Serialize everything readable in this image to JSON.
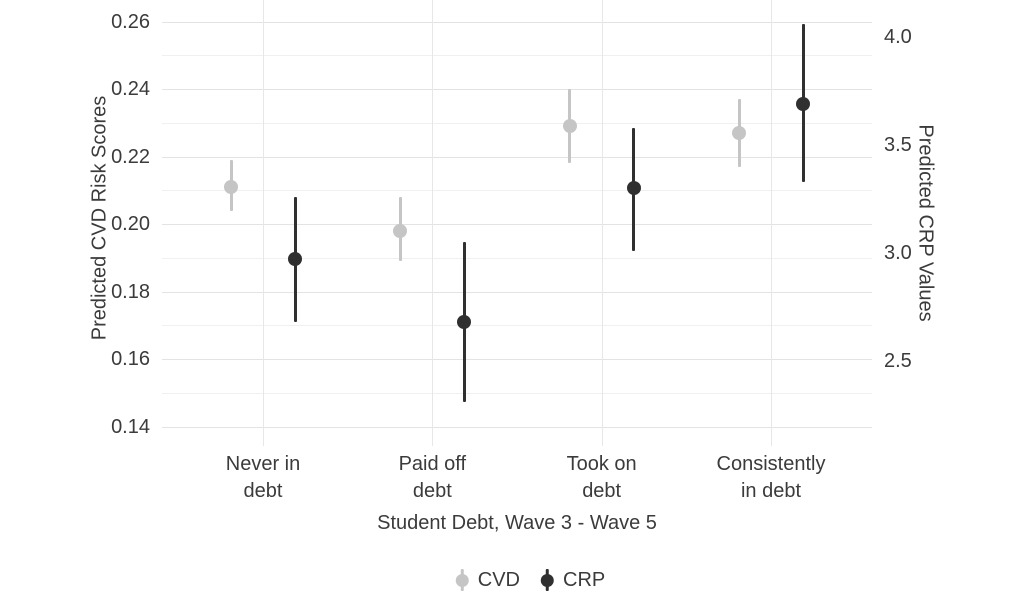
{
  "chart_data": {
    "type": "scatter",
    "subtype": "pointrange-dual-axis",
    "title": "",
    "xlabel": "Student Debt, Wave 3 - Wave 5",
    "categories": [
      {
        "lines": [
          "Never in",
          "debt"
        ]
      },
      {
        "lines": [
          "Paid off",
          "debt"
        ]
      },
      {
        "lines": [
          "Took on",
          "debt"
        ]
      },
      {
        "lines": [
          "Consistently",
          "in debt"
        ]
      }
    ],
    "left_axis": {
      "label": "Predicted CVD Risk Scores",
      "ticks": [
        "0.26",
        "0.24",
        "0.22",
        "0.20",
        "0.18",
        "0.16",
        "0.14"
      ],
      "range": [
        0.13,
        0.267
      ]
    },
    "right_axis": {
      "label": "Predicted CRP Values",
      "ticks": [
        "4.0",
        "3.5",
        "3.0",
        "2.5"
      ],
      "range": [
        2.29,
        4.09
      ]
    },
    "series": [
      {
        "name": "CVD",
        "axis": "left",
        "color": "#c5c5c5",
        "values": [
          0.211,
          0.198,
          0.229,
          0.227
        ],
        "ci_low": [
          0.204,
          0.189,
          0.218,
          0.217
        ],
        "ci_high": [
          0.219,
          0.208,
          0.24,
          0.237
        ]
      },
      {
        "name": "CRP",
        "axis": "right",
        "color": "#303030",
        "values": [
          2.97,
          2.68,
          3.3,
          3.69
        ],
        "ci_low": [
          2.68,
          2.31,
          3.01,
          3.33
        ],
        "ci_high": [
          3.26,
          3.05,
          3.58,
          4.06
        ]
      }
    ],
    "legend": {
      "position": "bottom",
      "entries": [
        {
          "label": "CVD",
          "color": "#c5c5c5"
        },
        {
          "label": "CRP",
          "color": "#303030"
        }
      ]
    },
    "grid": {
      "horizontal_major": true,
      "horizontal_minor": true,
      "vertical_major": true
    }
  },
  "colors": {
    "background": "#ffffff",
    "text": "#3b3b3b",
    "grid_major": "#e3e3e3",
    "grid_minor": "#f0f0f0",
    "cvd": "#c5c5c5",
    "crp": "#303030"
  }
}
